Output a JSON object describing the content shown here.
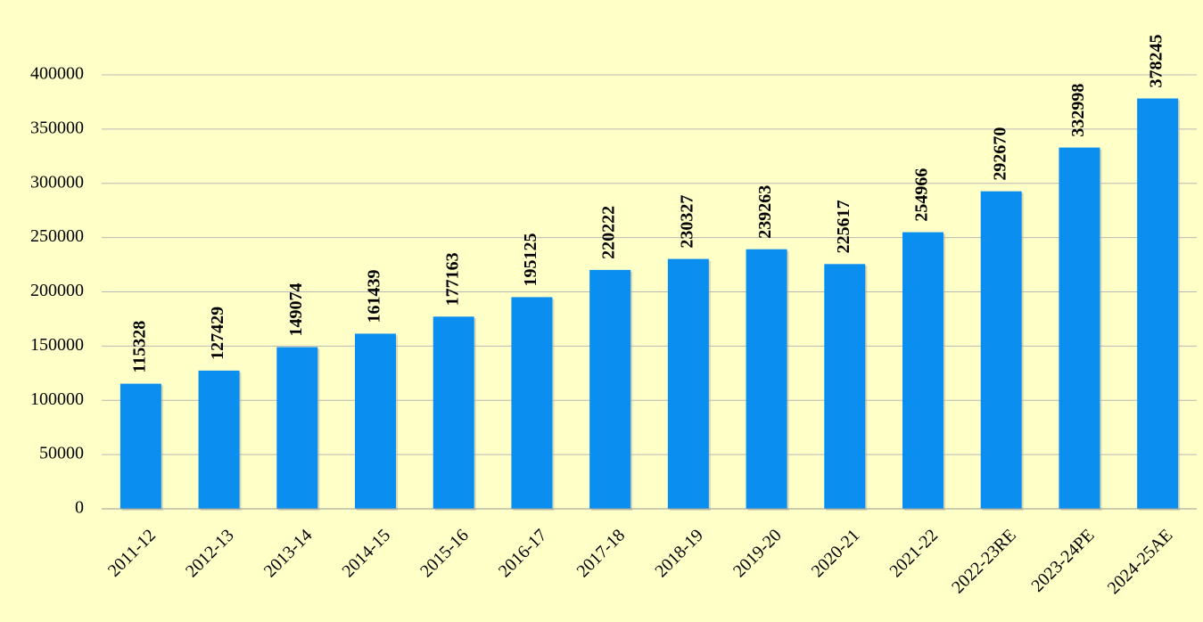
{
  "chart_data": {
    "type": "bar",
    "categories": [
      "2011-12",
      "2012-13",
      "2013-14",
      "2014-15",
      "2015-16",
      "2016-17",
      "2017-18",
      "2018-19",
      "2019-20",
      "2020-21",
      "2021-22",
      "2022-23RE",
      "2023-24PE",
      "2024-25AE"
    ],
    "values": [
      115328,
      127429,
      149074,
      161439,
      177163,
      195125,
      220222,
      230327,
      239263,
      225617,
      254966,
      292670,
      332998,
      378245
    ],
    "color": "#0a8ff0",
    "ylim": [
      0,
      400000
    ],
    "yticks": [
      0,
      50000,
      100000,
      150000,
      200000,
      250000,
      300000,
      350000,
      400000
    ],
    "grid": true
  }
}
